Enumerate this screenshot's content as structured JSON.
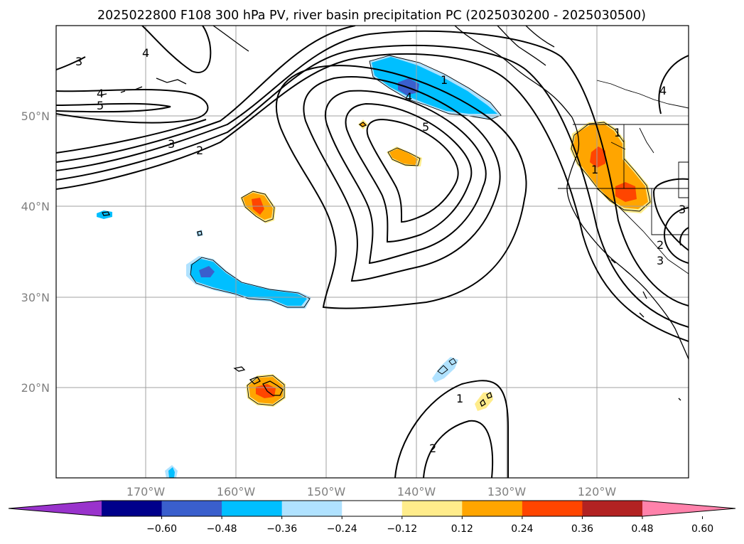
{
  "title": "2025022800 F108 300 hPa PV, river basin precipitation PC (2025030200 - 2025030500)",
  "lon_labels": [
    "170°W",
    "160°W",
    "150°W",
    "140°W",
    "130°W",
    "120°W"
  ],
  "lat_labels": [
    "50°N",
    "40°N",
    "30°N",
    "20°N"
  ],
  "contour_labels": [
    "3",
    "4",
    "4",
    "5",
    "3",
    "2",
    "1",
    "4",
    "5",
    "1",
    "1",
    "2",
    "1",
    "2",
    "3",
    "4",
    "3"
  ],
  "colorbar": {
    "colors": [
      "#9933cc",
      "#00008b",
      "#3a5fcd",
      "#00bfff",
      "#b0e2ff",
      "#ffffff",
      "#ffec8b",
      "#ffa500",
      "#ff4500",
      "#b22222",
      "#ff82ab"
    ],
    "labels": [
      "−0.60",
      "−0.48",
      "−0.36",
      "−0.24",
      "−0.12",
      "0.12",
      "0.24",
      "0.36",
      "0.48",
      "0.60"
    ]
  }
}
